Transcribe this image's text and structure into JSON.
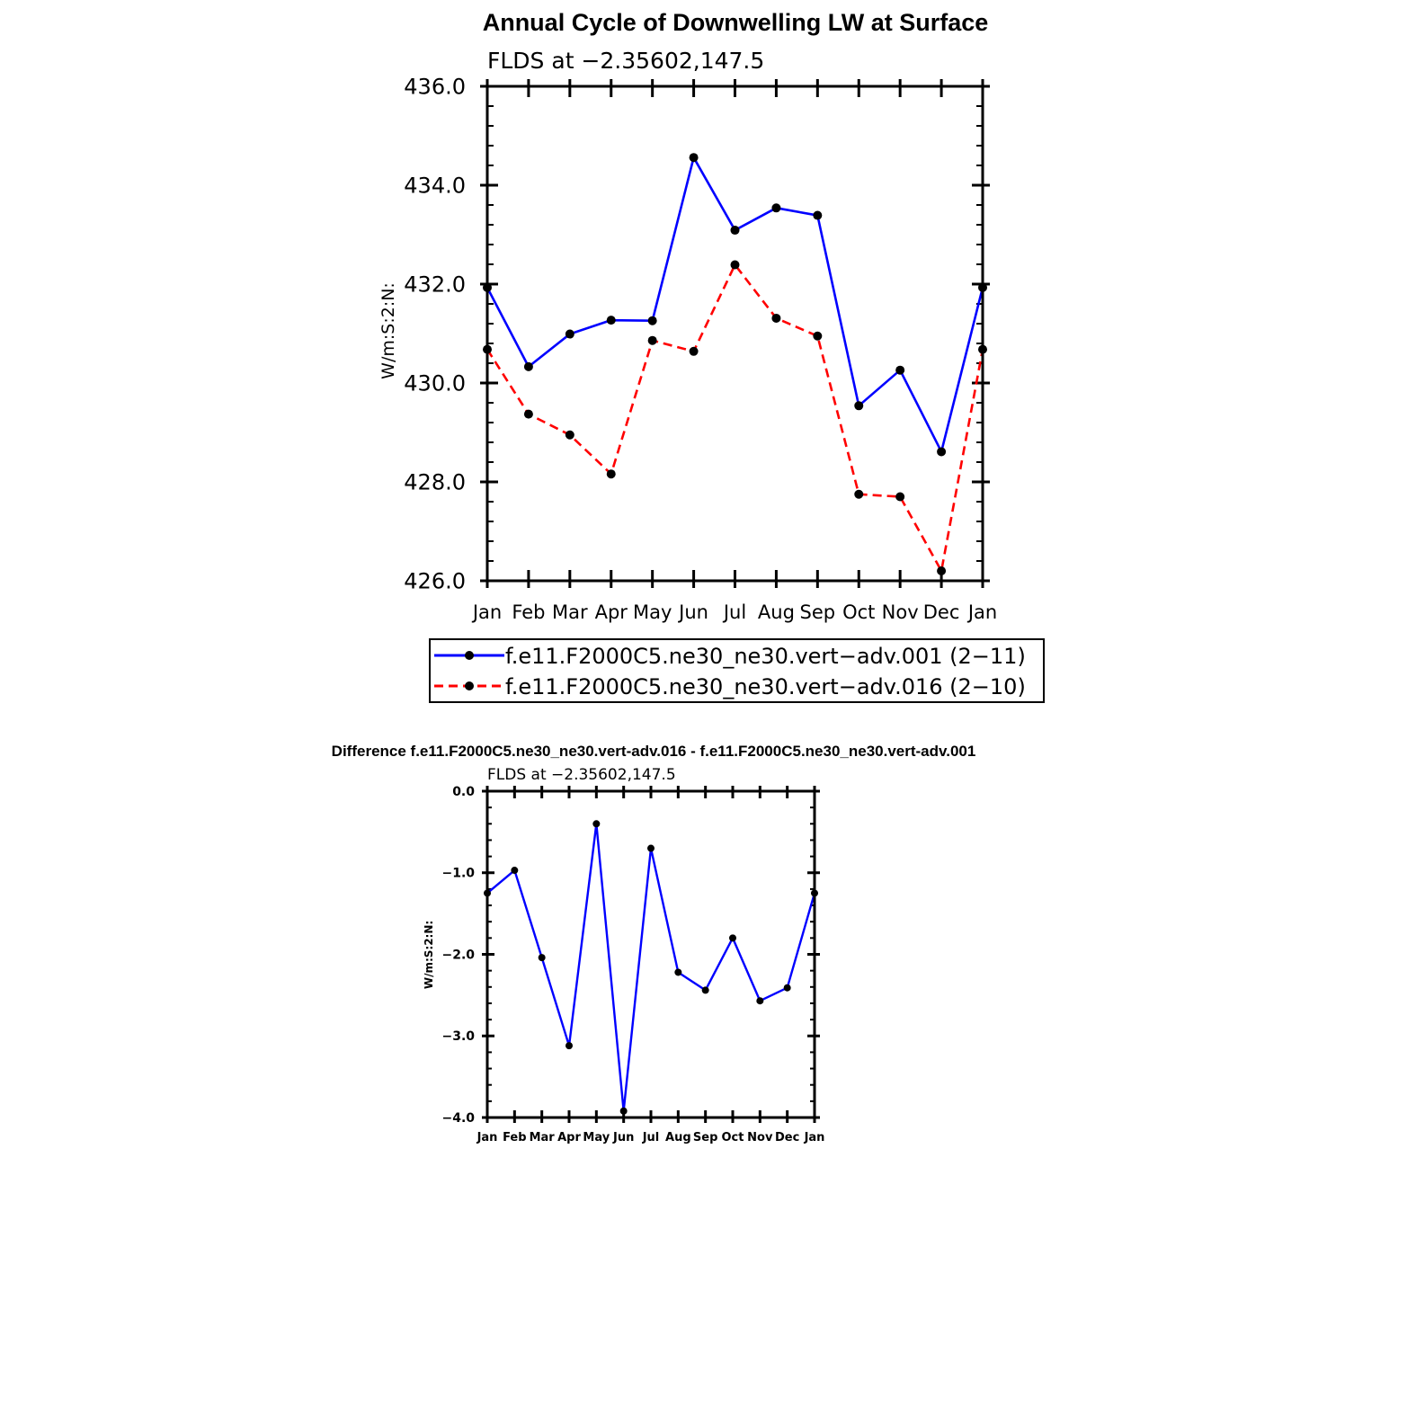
{
  "chart_data": [
    {
      "type": "line",
      "title": "Annual Cycle of Downwelling LW at Surface",
      "subtitle": "FLDS at −2.35602,147.5",
      "xlabel": "",
      "ylabel": "W/m:S:2:N:",
      "categories": [
        "Jan",
        "Feb",
        "Mar",
        "Apr",
        "May",
        "Jun",
        "Jul",
        "Aug",
        "Sep",
        "Oct",
        "Nov",
        "Dec",
        "Jan"
      ],
      "ylim": [
        426.0,
        436.0
      ],
      "yticks": [
        "426.0",
        "428.0",
        "430.0",
        "432.0",
        "434.0",
        "436.0"
      ],
      "grid": false,
      "legend_position": "bottom",
      "series": [
        {
          "name": "f.e11.F2000C5.ne30_ne30.vert−adv.001 (2−11)",
          "color": "#0000ff",
          "line_style": "solid",
          "values": [
            431.93,
            430.33,
            430.99,
            431.27,
            431.26,
            434.56,
            433.09,
            433.54,
            433.39,
            429.54,
            430.26,
            428.61,
            431.93
          ]
        },
        {
          "name": "f.e11.F2000C5.ne30_ne30.vert−adv.016 (2−10)",
          "color": "#ff0000",
          "line_style": "dashed",
          "values": [
            430.68,
            429.37,
            428.95,
            428.16,
            430.86,
            430.64,
            432.39,
            431.31,
            430.95,
            427.75,
            427.7,
            426.2,
            430.68
          ]
        }
      ]
    },
    {
      "type": "line",
      "title": "Difference f.e11.F2000C5.ne30_ne30.vert-adv.016 - f.e11.F2000C5.ne30_ne30.vert-adv.001",
      "subtitle": "FLDS at −2.35602,147.5",
      "xlabel": "",
      "ylabel": "W/m:S:2:N:",
      "categories": [
        "Jan",
        "Feb",
        "Mar",
        "Apr",
        "May",
        "Jun",
        "Jul",
        "Aug",
        "Sep",
        "Oct",
        "Nov",
        "Dec",
        "Jan"
      ],
      "ylim": [
        -4.0,
        0.0
      ],
      "yticks": [
        "−4.0",
        "−3.0",
        "−2.0",
        "−1.0",
        "0.0"
      ],
      "grid": false,
      "series": [
        {
          "color": "#0000ff",
          "line_style": "solid",
          "values": [
            -1.25,
            -0.97,
            -2.04,
            -3.12,
            -0.4,
            -3.92,
            -0.7,
            -2.22,
            -2.44,
            -1.8,
            -2.57,
            -2.41,
            -1.25
          ]
        }
      ]
    }
  ]
}
